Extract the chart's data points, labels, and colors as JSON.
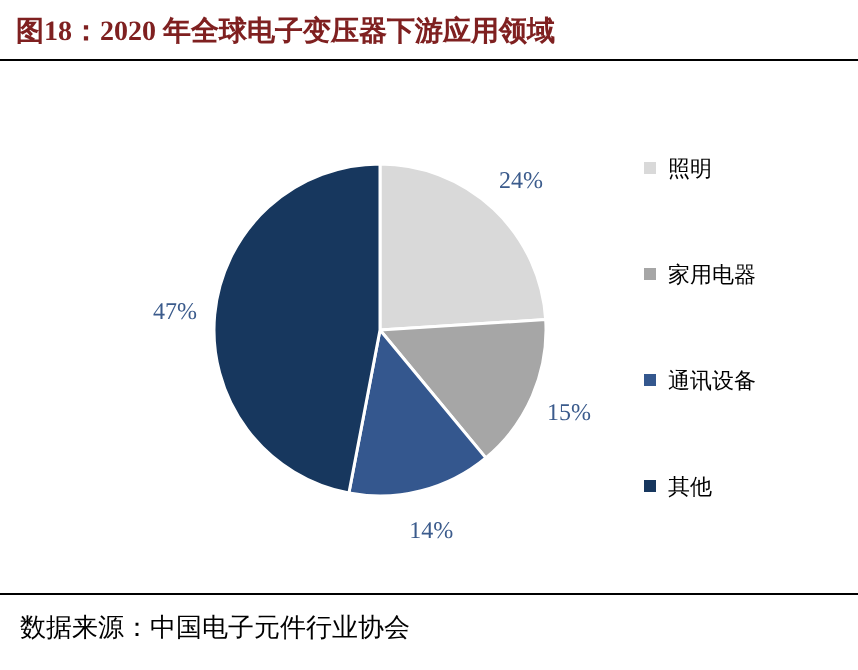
{
  "chart_data": {
    "type": "pie",
    "title": "图18：2020 年全球电子变压器下游应用领域",
    "categories": [
      "照明",
      "家用电器",
      "通讯设备",
      "其他"
    ],
    "values": [
      24,
      15,
      14,
      47
    ],
    "colors": [
      "#d9d9d9",
      "#a6a6a6",
      "#34578e",
      "#17375e"
    ],
    "value_labels": [
      "24%",
      "15%",
      "14%",
      "47%"
    ],
    "legend": "right",
    "annotations": [
      "数据来源：中国电子元件行业协会"
    ]
  }
}
